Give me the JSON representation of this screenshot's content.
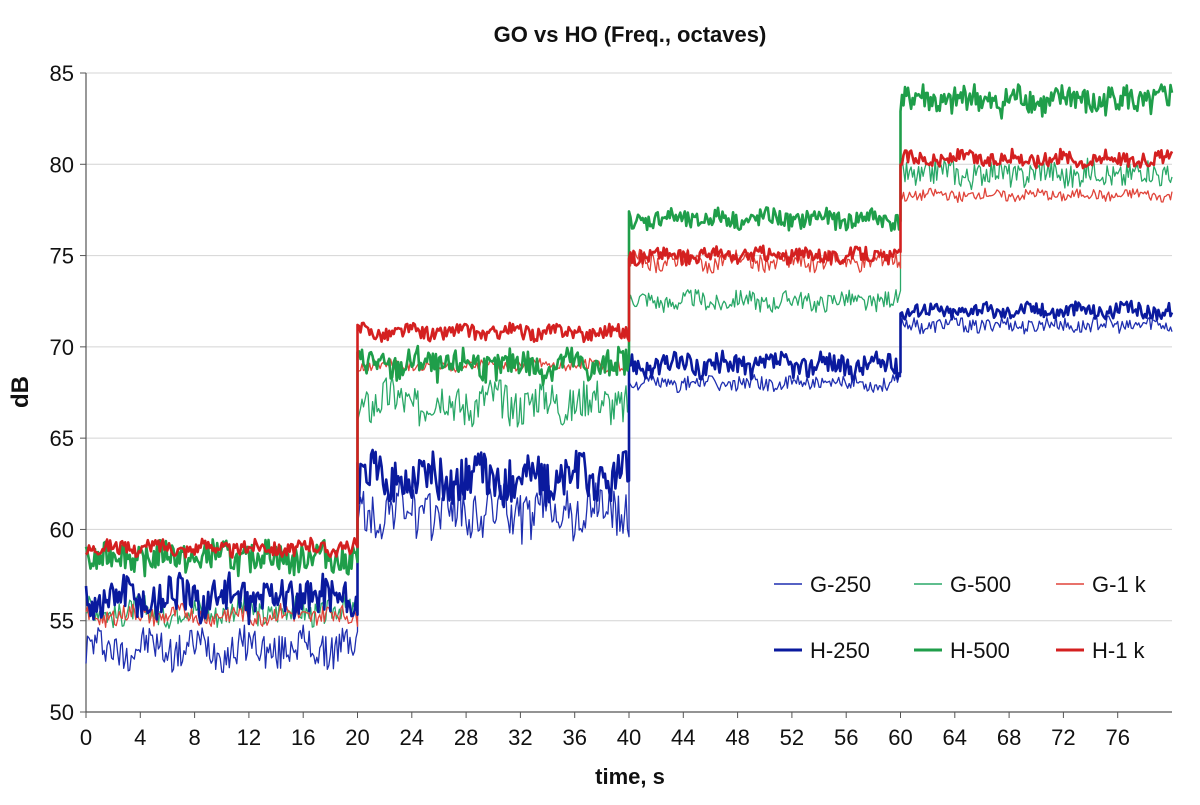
{
  "chart_data": {
    "type": "line",
    "title": "GO vs HO  (Freq., octaves)",
    "xlabel": "time, s",
    "ylabel": "dB",
    "xlim": [
      0,
      80
    ],
    "ylim": [
      50,
      85
    ],
    "xticks": [
      0,
      4,
      8,
      12,
      16,
      20,
      24,
      28,
      32,
      36,
      40,
      44,
      48,
      52,
      56,
      60,
      64,
      68,
      72,
      76
    ],
    "yticks": [
      50,
      55,
      60,
      65,
      70,
      75,
      80,
      85
    ],
    "grid": "horizontal",
    "legend_position": "bottom-right",
    "series": [
      {
        "name": "G-250",
        "color": "#1f2fb0",
        "weight": "thin",
        "segments": [
          {
            "from": 0,
            "to": 20,
            "mean": 53.5,
            "amp": 1.0
          },
          {
            "from": 20,
            "to": 40,
            "mean": 61.0,
            "amp": 1.4
          },
          {
            "from": 40,
            "to": 60,
            "mean": 68.0,
            "amp": 0.4
          },
          {
            "from": 60,
            "to": 80,
            "mean": 71.2,
            "amp": 0.4
          }
        ]
      },
      {
        "name": "G-500",
        "color": "#2aa868",
        "weight": "thin",
        "segments": [
          {
            "from": 0,
            "to": 20,
            "mean": 55.5,
            "amp": 0.7
          },
          {
            "from": 20,
            "to": 40,
            "mean": 67.0,
            "amp": 1.1
          },
          {
            "from": 40,
            "to": 60,
            "mean": 72.5,
            "amp": 0.5
          },
          {
            "from": 60,
            "to": 80,
            "mean": 79.5,
            "amp": 0.7
          }
        ]
      },
      {
        "name": "G-1 k",
        "color": "#e0443a",
        "weight": "thin",
        "segments": [
          {
            "from": 0,
            "to": 20,
            "mean": 55.3,
            "amp": 0.5
          },
          {
            "from": 20,
            "to": 40,
            "mean": 69.0,
            "amp": 0.3
          },
          {
            "from": 40,
            "to": 60,
            "mean": 74.7,
            "amp": 0.5
          },
          {
            "from": 60,
            "to": 80,
            "mean": 78.3,
            "amp": 0.3
          }
        ]
      },
      {
        "name": "H-250",
        "color": "#0a1a9e",
        "weight": "thick",
        "segments": [
          {
            "from": 0,
            "to": 20,
            "mean": 56.3,
            "amp": 1.1
          },
          {
            "from": 20,
            "to": 40,
            "mean": 62.8,
            "amp": 1.2
          },
          {
            "from": 40,
            "to": 60,
            "mean": 69.0,
            "amp": 0.6
          },
          {
            "from": 60,
            "to": 80,
            "mean": 72.0,
            "amp": 0.4
          }
        ]
      },
      {
        "name": "H-500",
        "color": "#1f9e4a",
        "weight": "thick",
        "segments": [
          {
            "from": 0,
            "to": 20,
            "mean": 58.5,
            "amp": 0.8
          },
          {
            "from": 20,
            "to": 40,
            "mean": 69.0,
            "amp": 0.8
          },
          {
            "from": 40,
            "to": 60,
            "mean": 77.0,
            "amp": 0.5
          },
          {
            "from": 60,
            "to": 80,
            "mean": 83.5,
            "amp": 0.8
          }
        ]
      },
      {
        "name": "H-1 k",
        "color": "#d42020",
        "weight": "thick",
        "segments": [
          {
            "from": 0,
            "to": 20,
            "mean": 59.0,
            "amp": 0.4
          },
          {
            "from": 20,
            "to": 40,
            "mean": 70.8,
            "amp": 0.4
          },
          {
            "from": 40,
            "to": 60,
            "mean": 75.0,
            "amp": 0.4
          },
          {
            "from": 60,
            "to": 80,
            "mean": 80.3,
            "amp": 0.4
          }
        ]
      }
    ]
  }
}
